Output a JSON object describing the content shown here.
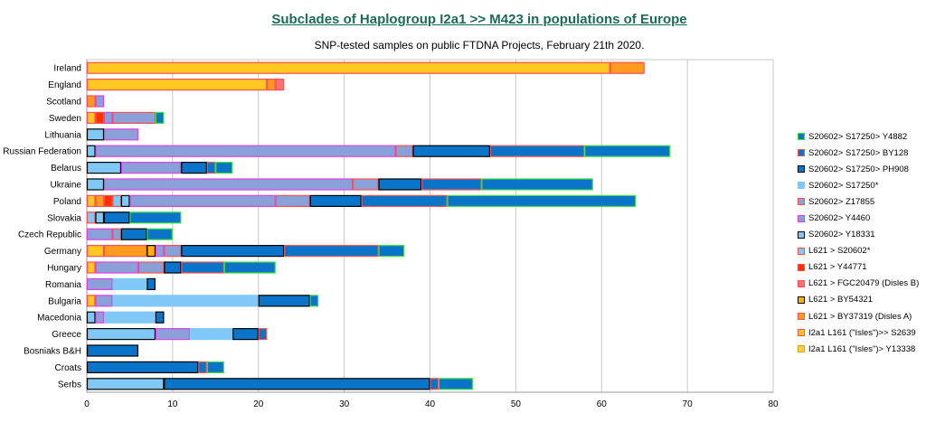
{
  "colors": {
    "gridline": "#c8c8c8",
    "axis": "#999999",
    "title": "#1a6b5a"
  },
  "chart_data": {
    "type": "bar",
    "orientation": "horizontal",
    "stacked": true,
    "title": "Subclades of Haplogroup I2a1 >> M423 in populations of Europe",
    "subtitle": "SNP-tested samples on public FTDNA Projects, February 21th 2020.",
    "xlim": [
      0,
      80
    ],
    "xticks": [
      0,
      10,
      20,
      30,
      40,
      50,
      60,
      70,
      80
    ],
    "grid": "vertical",
    "legend_position": "right",
    "categories": [
      "Ireland",
      "England",
      "Scotland",
      "Sweden",
      "Lithuania",
      "Russian Federation",
      "Belarus",
      "Ukraine",
      "Poland",
      "Slovakia",
      "Czech Republic",
      "Germany",
      "Hungary",
      "Romania",
      "Bulgaria",
      "Macedonia",
      "Greece",
      "Bosniaks B&H",
      "Croats",
      "Serbs"
    ],
    "series": [
      {
        "name": "I2a1 L161 (\"Isles\")> Y13338",
        "color": "#ffd040",
        "border": "#e0a000",
        "values": [
          0,
          0,
          0,
          0,
          0,
          0,
          0,
          0,
          0,
          0,
          0,
          0,
          0,
          0,
          0,
          0,
          0,
          0,
          0,
          0
        ]
      },
      {
        "name": "I2a1 L161 (\"Isles\")>> S2639",
        "color": "#ffc820",
        "border": "#ff5050",
        "values": [
          61,
          21,
          0,
          1,
          0,
          0,
          0,
          0,
          1,
          0,
          0,
          2,
          1,
          0,
          1,
          0,
          0,
          0,
          0,
          0
        ]
      },
      {
        "name": "L621 > BY37319 (Disles A)",
        "color": "#ff9a20",
        "border": "#ff5050",
        "values": [
          4,
          1,
          1,
          0,
          0,
          0,
          0,
          0,
          1,
          0,
          0,
          5,
          0,
          0,
          0,
          0,
          0,
          0,
          0,
          0
        ]
      },
      {
        "name": "L621 > BY54321",
        "color": "#ffb000",
        "border": "#000000",
        "values": [
          0,
          0,
          0,
          0,
          0,
          0,
          0,
          0,
          0,
          0,
          0,
          1,
          0,
          0,
          0,
          0,
          0,
          0,
          0,
          0
        ]
      },
      {
        "name": "L621 > FGC20479 (Disles B)",
        "color": "#ff7070",
        "border": "#ff5050",
        "values": [
          0,
          1,
          0,
          0,
          0,
          0,
          0,
          0,
          0,
          0,
          0,
          0,
          0,
          0,
          0,
          0,
          0,
          0,
          0,
          0
        ]
      },
      {
        "name": "L621 > Y44771",
        "color": "#ff3000",
        "border": "#ff5050",
        "values": [
          0,
          0,
          0,
          1,
          0,
          0,
          0,
          0,
          1,
          0,
          0,
          0,
          0,
          0,
          0,
          0,
          0,
          0,
          0,
          0
        ]
      },
      {
        "name": "L621 > S20602*",
        "color": "#80c8f8",
        "border": "#ff5050",
        "values": [
          0,
          0,
          0,
          0,
          0,
          0,
          0,
          0,
          1,
          1,
          0,
          0,
          0,
          0,
          0,
          0,
          0,
          0,
          0,
          0
        ]
      },
      {
        "name": "S20602> Y18331",
        "color": "#80c8f8",
        "border": "#000000",
        "values": [
          0,
          0,
          0,
          0,
          2,
          1,
          4,
          2,
          1,
          1,
          0,
          0,
          0,
          0,
          0,
          1,
          8,
          0,
          0,
          9
        ]
      },
      {
        "name": "S20602> Y4460",
        "color": "#8aa0d8",
        "border": "#e040e0",
        "values": [
          0,
          0,
          1,
          1,
          4,
          35,
          7,
          29,
          17,
          0,
          3,
          1,
          5,
          3,
          2,
          1,
          4,
          0,
          0,
          0
        ]
      },
      {
        "name": "S20602> Z17855",
        "color": "#8aa0d8",
        "border": "#ff5050",
        "values": [
          0,
          0,
          0,
          5,
          0,
          2,
          0,
          3,
          4,
          0,
          1,
          2,
          3,
          0,
          0,
          0,
          0,
          0,
          0,
          0
        ]
      },
      {
        "name": "S20602> S17250*",
        "color": "#80c8f8",
        "border": "#80c8f8",
        "values": [
          0,
          0,
          0,
          0,
          0,
          0,
          0,
          0,
          0,
          0,
          0,
          0,
          0,
          4,
          17,
          6,
          5,
          0,
          0,
          0
        ]
      },
      {
        "name": "S20602> S17250> PH908",
        "color": "#0a74c8",
        "border": "#000000",
        "values": [
          0,
          0,
          0,
          0,
          0,
          9,
          3,
          5,
          6,
          3,
          3,
          12,
          2,
          1,
          6,
          1,
          3,
          6,
          13,
          31
        ]
      },
      {
        "name": "S20602> S17250> BY128",
        "color": "#0a74c8",
        "border": "#ff5050",
        "values": [
          0,
          0,
          0,
          0,
          0,
          11,
          1,
          7,
          10,
          0,
          0,
          11,
          5,
          0,
          0,
          0,
          1,
          0,
          1,
          1
        ]
      },
      {
        "name": "S20602> S17250> Y4882",
        "color": "#0a74c8",
        "border": "#40e040",
        "values": [
          0,
          0,
          0,
          1,
          0,
          10,
          2,
          13,
          22,
          6,
          3,
          3,
          6,
          0,
          1,
          0,
          0,
          0,
          2,
          4
        ]
      }
    ]
  }
}
